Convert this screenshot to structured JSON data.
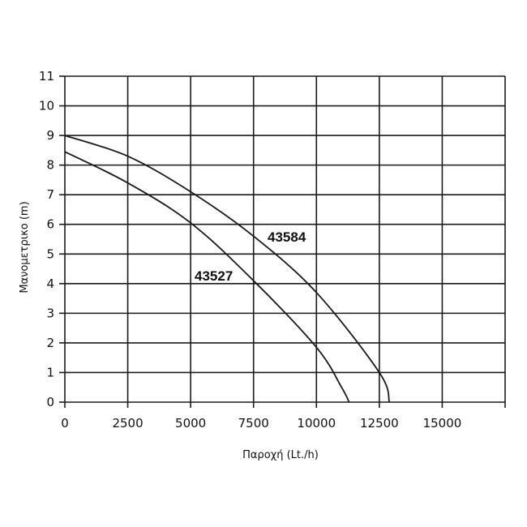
{
  "chart_data": {
    "type": "line",
    "title": "",
    "xlabel": "Παροχή (Lt./h)",
    "ylabel": "Μανομετρικο  (m)",
    "xlim": [
      0,
      17500
    ],
    "ylim": [
      0,
      11
    ],
    "x_ticks": [
      0,
      2500,
      5000,
      7500,
      10000,
      12500,
      15000
    ],
    "x_tick_labels": [
      "0",
      "2500",
      "5000",
      "7500",
      "10000",
      "12500",
      "15000"
    ],
    "y_ticks": [
      0,
      1,
      2,
      3,
      4,
      5,
      6,
      7,
      8,
      9,
      10,
      11
    ],
    "y_tick_labels": [
      "0",
      "1",
      "2",
      "3",
      "4",
      "5",
      "6",
      "7",
      "8",
      "9",
      "10",
      "11"
    ],
    "grid": true,
    "legend": "none",
    "series": [
      {
        "name": "43584",
        "x": [
          0,
          2500,
          5000,
          7500,
          10000,
          12500,
          12900
        ],
        "y": [
          9.0,
          8.3,
          7.1,
          5.6,
          3.7,
          1.0,
          0.0
        ]
      },
      {
        "name": "43527",
        "x": [
          0,
          2500,
          5000,
          7500,
          10000,
          11000,
          11300
        ],
        "y": [
          8.45,
          7.4,
          6.05,
          4.1,
          1.85,
          0.5,
          0.0
        ]
      }
    ]
  }
}
